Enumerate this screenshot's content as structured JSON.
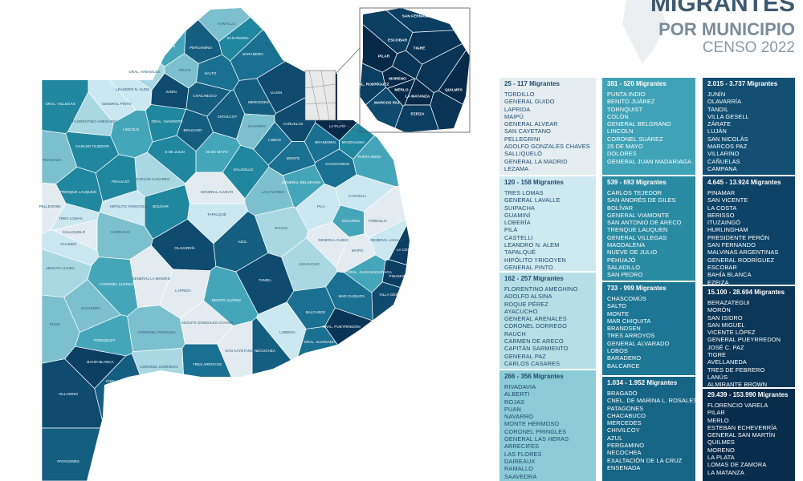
{
  "title": {
    "line1": "MIGRANTES",
    "line2": "POR MUNICIPIO",
    "line3": "CENSO 2022"
  },
  "legend": [
    {
      "range": "25 - 117 Migrantes",
      "items": [
        "TORDILLO",
        "GENERAL GUIDO",
        "LAPRIDA",
        "MAIPÚ",
        "GENERAL ALVEAR",
        "SAN CAYETANO",
        "PELLEGRINI",
        "ADOLFO GONZALES CHAVES",
        "SALLIQUELÓ",
        "GENERAL LA MADRID",
        "LEZAMA"
      ]
    },
    {
      "range": "120 - 158 Migrantes",
      "items": [
        "TRES LOMAS",
        "GENERAL LAVALLE",
        "SUIPACHA",
        "GUAMINÍ",
        "LOBERÍA",
        "PILA",
        "CASTELLI",
        "LEANDRO N. ALEM",
        "TAPALQUÉ",
        "HIPÓLITO YRIGOYEN",
        "GENERAL PINTO"
      ]
    },
    {
      "range": "162 - 257 Migrantes",
      "items": [
        "FLORENTINO AMEGHINO",
        "ADOLFO ALSINA",
        "ROQUE PÉREZ",
        "AYACUCHO",
        "GENERAL ARENALES",
        "CORONEL DORREGO",
        "RAUCH",
        "CARMEN DE ARECO",
        "CAPITÁN SARMIENTO",
        "GENERAL PAZ",
        "CARLOS CASARES"
      ]
    },
    {
      "range": "266 - 356 Migrantes",
      "items": [
        "RIVADAVIA",
        "ALBERTI",
        "ROJAS",
        "PUAN",
        "NAVARRO",
        "MONTE HERMOSO",
        "CORONEL PRINGLES",
        "GENERAL LAS HERAS",
        "ARRECIFES",
        "LAS FLORES",
        "DAIREAUX",
        "RAMALLO",
        "SAAVEDRA"
      ]
    },
    {
      "range": "381 - 520 Migrantes",
      "items": [
        "PUNTA INDIO",
        "BENITO JUÁREZ",
        "TORNQUIST",
        "COLÓN",
        "GENERAL BELGRANO",
        "LINCOLN",
        "CORONEL SUÁREZ",
        "25 DE MAYO",
        "DOLORES",
        "GENERAL JUAN MADARIAGA"
      ]
    },
    {
      "range": "539 - 693 Migrantes",
      "items": [
        "CARLOS TEJEDOR",
        "SAN ANDRÉS DE GILES",
        "BOLÍVAR",
        "GENERAL VIAMONTE",
        "SAN ANTONIO DE ARECO",
        "TRENQUE LAUQUEN",
        "GENERAL VILLEGAS",
        "MAGDALENA",
        "NUEVE DE JULIO",
        "PEHUAJÓ",
        "SALADILLO",
        "SAN PEDRO"
      ]
    },
    {
      "range": "733 - 999 Migrantes",
      "items": [
        "CHASCOMÚS",
        "SALTO",
        "MONTE",
        "MAR CHIQUITA",
        "BRANDSEN",
        "TRES ARROYOS",
        "GENERAL ALVARADO",
        "LOBOS",
        "BARADERO",
        "BALCARCE"
      ]
    },
    {
      "range": "1.034 - 1.952 Migrantes",
      "items": [
        "BRAGADO",
        "CNEL. DE MARINA L. ROSALES",
        "PATAGONES",
        "CHACABUCO",
        "MERCEDES",
        "CHIVILCOY",
        "AZUL",
        "PERGAMINO",
        "NECOCHEA",
        "EXALTACIÓN DE LA CRUZ",
        "ENSENADA"
      ]
    },
    {
      "range": "2.015 - 3.737 Migrantes",
      "items": [
        "JUNÍN",
        "OLAVARRÍA",
        "TANDIL",
        "VILLA GESELL",
        "ZÁRATE",
        "LUJÁN",
        "SAN NICOLÁS",
        "MARCOS PAZ",
        "VILLARINO",
        "CAÑUELAS",
        "CAMPANA"
      ]
    },
    {
      "range": "4.645 - 13.924 Migrantes",
      "items": [
        "PINAMAR",
        "SAN VICENTE",
        "LA COSTA",
        "BERISSO",
        "ITUZAINGÓ",
        "HURLINGHAM",
        "PRESIDENTE PERÓN",
        "SAN FERNANDO",
        "MALVINAS ARGENTINAS",
        "GENERAL RODRÍGUEZ",
        "ESCOBAR",
        "BAHÍA BLANCA",
        "EZEIZA"
      ]
    },
    {
      "range": "15.100 - 28.694 Migrantes",
      "items": [
        "BERAZATEGUI",
        "MORÓN",
        "SAN ISIDRO",
        "SAN MIGUEL",
        "VICENTE LÓPEZ",
        "GENERAL PUEYRREDON",
        "JOSÉ C. PAZ",
        "TIGRE",
        "AVELLANEDA",
        "TRES DE FEBRERO",
        "LANÚS",
        "ALMIRANTE BROWN"
      ]
    },
    {
      "range": "29.439 - 153.990 Migrantes",
      "items": [
        "FLORENCIO VARELA",
        "PILAR",
        "MERLO",
        "ESTEBAN ECHEVERRÍA",
        "GENERAL SAN MARTÍN",
        "QUILMES",
        "MORENO",
        "LA PLATA",
        "LOMAS DE ZAMORA",
        "LA MATANZA"
      ]
    }
  ],
  "map": {
    "labels": [
      "GRAL. VILLEGAS",
      "FLORENTINO AMEGHINO",
      "LEANDRO N. ALEM",
      "GENERAL PINTO",
      "LINCOLN",
      "JUNÍN",
      "GRAL. ARENALES",
      "ROJAS",
      "PERGAMINO",
      "COLÓN",
      "SAN PEDRO",
      "RAMALLO",
      "BARADERO",
      "SALTO",
      "CHACABUCO",
      "GRAL. VIAMONTE",
      "CARLOS TEJEDOR",
      "BRAGADO",
      "CHIVILCOY",
      "9 DE JULIO",
      "25 DE MAYO",
      "NAVARRO",
      "MERCEDES",
      "LUJÁN",
      "CARLOS CASARES",
      "PEHUAJÓ",
      "TRENQUE LAUQUEN",
      "SALADILLO",
      "LOBOS",
      "MONTE",
      "CAÑUELAS",
      "BRANDSEN",
      "CHASCOMÚS",
      "MAGDALENA",
      "PUNTA INDIO",
      "LA PLATA",
      "GENERAL ALVEAR",
      "LAS FLORES",
      "GENERAL BELGRANO",
      "BOLÍVAR",
      "DAIREAUX",
      "TAPALQUÉ",
      "RAUCH",
      "PILA",
      "CASTELLI",
      "DOLORES",
      "TORDILLO",
      "GENERAL LAVALLE",
      "GENERAL GUIDO",
      "MAIPÚ",
      "LA COSTA",
      "GRAL. JUAN MADARIAGA",
      "PINAMAR",
      "VILLA GESELL",
      "OLAVARRÍA",
      "AZUL",
      "AYACUCHO",
      "TANDIL",
      "GUAMINÍ",
      "ADOLFO ALSINA",
      "CORONEL SUÁREZ",
      "GENERAL LA MADRID",
      "LAPRIDA",
      "BENITO JUÁREZ",
      "MAR CHIQUITA",
      "BALCARCE",
      "LOBERÍA",
      "GRAL. PUEYRREDÓN",
      "GRAL. ALVARADO",
      "NECOCHEA",
      "SAN CAYETANO",
      "TRES ARROYOS",
      "ADOLFO GONZALES CHAVES",
      "CORONEL PRINGLES",
      "CORONEL DORREGO",
      "SAAVEDRA",
      "TORNQUIST",
      "PUAN",
      "BAHÍA BLANCA",
      "CNEL. ROSALES",
      "VILLARINO",
      "PATAGONES",
      "RIVADAVIA",
      "PELLEGRINI",
      "TRES LOMAS",
      "SALLIQUELÓ",
      "HIPÓLITO YRIGOYEN"
    ],
    "inset_labels": [
      "SAN FERNANDO",
      "ESCOBAR",
      "TIGRE",
      "PILAR",
      "MORENO",
      "GRAL. RODRÍGUEZ",
      "MERLO",
      "MARCOS PAZ",
      "LA MATANZA",
      "EZEIZA",
      "QUILMES"
    ]
  }
}
